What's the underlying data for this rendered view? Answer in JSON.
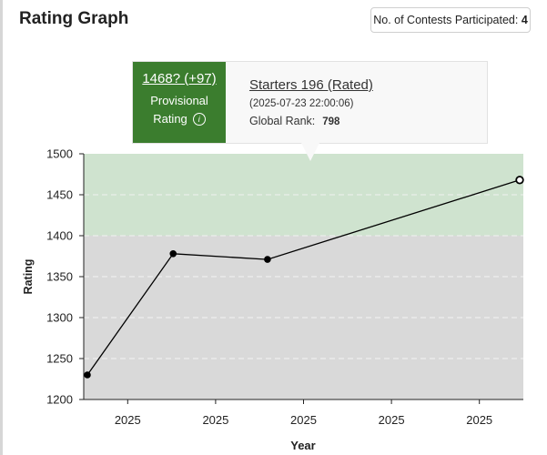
{
  "header": {
    "title": "Rating Graph",
    "contests_label": "No. of Contests Participated:",
    "contests_count": "4"
  },
  "tooltip": {
    "rating": "1468? (+97)",
    "status_line1": "Provisional",
    "status_line2": "Rating",
    "info_icon": "info-circle-icon",
    "contest_name": "Starters 196 (Rated)",
    "date": "(2025-07-23 22:00:06)",
    "global_rank_label": "Global Rank:",
    "global_rank": "798",
    "accent_color": "#3b7d2e"
  },
  "chart_data": {
    "type": "line",
    "xlabel": "Year",
    "ylabel": "Rating",
    "ylim": [
      1200,
      1500
    ],
    "y_ticks": [
      1200,
      1250,
      1300,
      1350,
      1400,
      1450,
      1500
    ],
    "x_tick_labels": [
      "2025",
      "2025",
      "2025",
      "2025",
      "2025"
    ],
    "bands": [
      {
        "from": 1200,
        "to": 1400,
        "color": "#d9d9d9"
      },
      {
        "from": 1400,
        "to": 1500,
        "color": "#cfe3cf"
      }
    ],
    "series": [
      {
        "points": [
          {
            "t": 0.0,
            "rating": 1230
          },
          {
            "t": 0.1984,
            "rating": 1378
          },
          {
            "t": 0.4166,
            "rating": 1371
          },
          {
            "t": 1.0,
            "rating": 1468,
            "highlighted": true
          }
        ]
      }
    ],
    "grid": true
  }
}
